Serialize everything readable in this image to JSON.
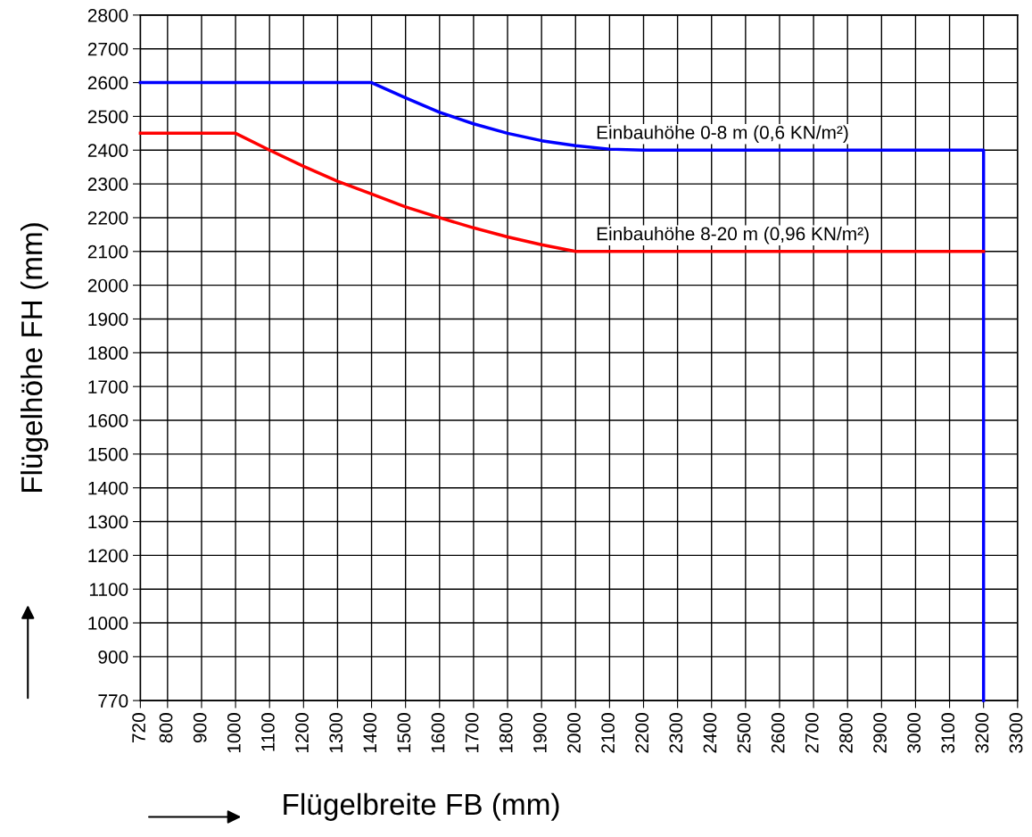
{
  "chart_data": {
    "type": "line",
    "xlabel": "Flügelbreite FB (mm)",
    "ylabel": "Flügelhöhe FH (mm)",
    "xlim": [
      720,
      3300
    ],
    "xticks": [
      720,
      800,
      900,
      1000,
      1100,
      1200,
      1300,
      1400,
      1500,
      1600,
      1700,
      1800,
      1900,
      2000,
      2100,
      2200,
      2300,
      2400,
      2500,
      2600,
      2700,
      2800,
      2900,
      3000,
      3100,
      3200,
      3300
    ],
    "ylim": [
      770,
      2800
    ],
    "yticks": [
      770,
      900,
      1000,
      1100,
      1200,
      1300,
      1400,
      1500,
      1600,
      1700,
      1800,
      1900,
      2000,
      2100,
      2200,
      2300,
      2400,
      2500,
      2600,
      2700,
      2800
    ],
    "grid": true,
    "legend": false,
    "marker": "none",
    "line_style": "solid",
    "series": [
      {
        "color": "#0000ff",
        "x": [
          720,
          1400,
          1500,
          1600,
          1700,
          1800,
          1900,
          2000,
          2100,
          2200,
          3200,
          3200
        ],
        "values": [
          2600,
          2600,
          2555,
          2512,
          2478,
          2450,
          2428,
          2413,
          2403,
          2400,
          2400,
          770
        ]
      },
      {
        "color": "#ff0000",
        "x": [
          720,
          1000,
          1100,
          1200,
          1300,
          1400,
          1500,
          1600,
          1700,
          1800,
          1900,
          2000,
          3200
        ],
        "values": [
          2450,
          2450,
          2400,
          2352,
          2308,
          2270,
          2232,
          2200,
          2170,
          2143,
          2120,
          2100,
          2100
        ]
      }
    ],
    "annotations": [
      {
        "text": "Einbauhöhe 0-8 m (0,6 KN/m²)",
        "x": 2060,
        "y": 2400
      },
      {
        "text": "Einbauhöhe 8-20 m (0,96 KN/m²)",
        "x": 2060,
        "y": 2100
      }
    ]
  }
}
